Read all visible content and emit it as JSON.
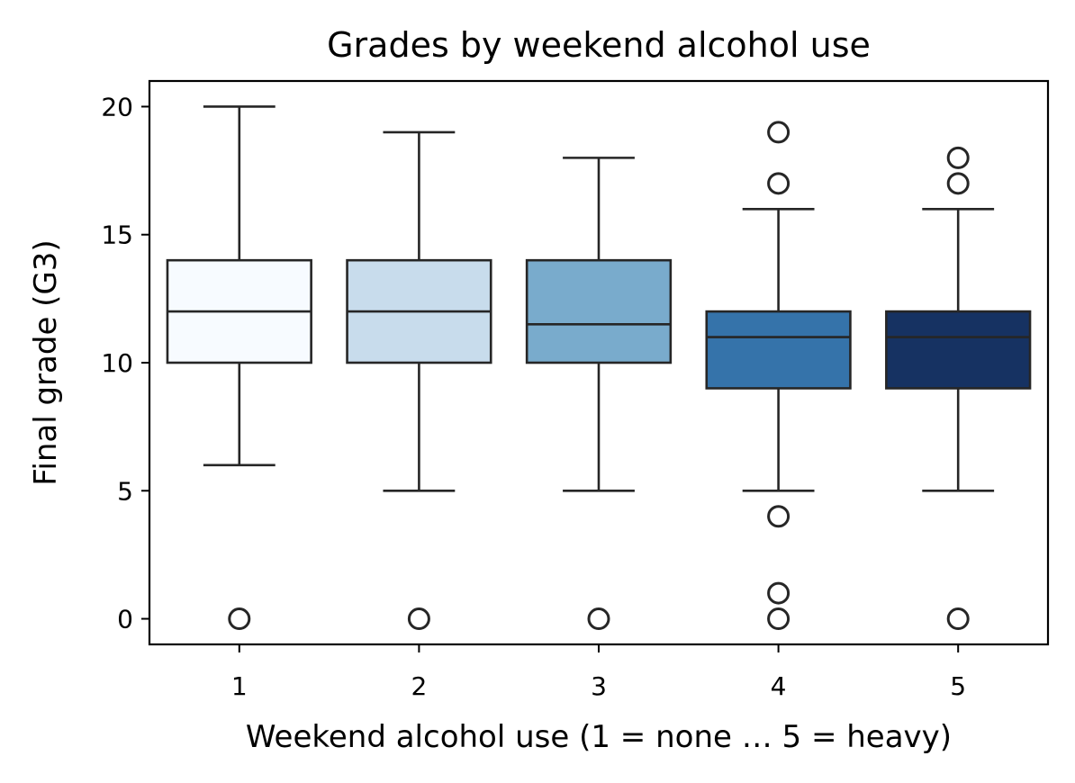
{
  "chart_data": {
    "type": "box",
    "title": "Grades by weekend alcohol use",
    "xlabel": "Weekend alcohol use (1 = none … 5 = heavy)",
    "ylabel": "Final grade (G3)",
    "ylim": [
      -1,
      21
    ],
    "y_ticks": [
      0,
      5,
      10,
      15,
      20
    ],
    "grid": false,
    "categories": [
      "1",
      "2",
      "3",
      "4",
      "5"
    ],
    "boxes": [
      {
        "category": "1",
        "whisker_low": 6,
        "q1": 10,
        "median": 12,
        "q3": 14,
        "whisker_high": 20,
        "outliers": [
          0
        ],
        "color": "#f7fbff"
      },
      {
        "category": "2",
        "whisker_low": 5,
        "q1": 10,
        "median": 12,
        "q3": 14,
        "whisker_high": 19,
        "outliers": [
          0
        ],
        "color": "#c8dcec"
      },
      {
        "category": "3",
        "whisker_low": 5,
        "q1": 10,
        "median": 11.5,
        "q3": 14,
        "whisker_high": 18,
        "outliers": [
          0
        ],
        "color": "#79abcc"
      },
      {
        "category": "4",
        "whisker_low": 5,
        "q1": 9,
        "median": 11,
        "q3": 12,
        "whisker_high": 16,
        "outliers": [
          19,
          17,
          4,
          1,
          0
        ],
        "color": "#3573aa"
      },
      {
        "category": "5",
        "whisker_low": 5,
        "q1": 9,
        "median": 11,
        "q3": 12,
        "whisker_high": 16,
        "outliers": [
          18,
          17,
          0
        ],
        "color": "#163262"
      }
    ]
  }
}
